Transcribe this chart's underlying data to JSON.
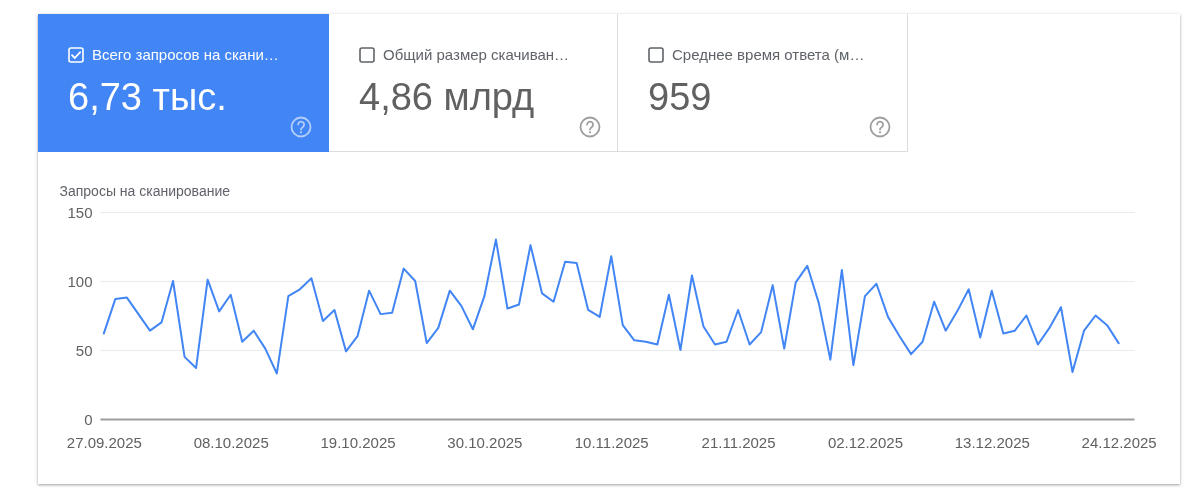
{
  "chart_data": [
    {
      "type": "other",
      "annotations": [
        "Всего запросов на скани…",
        "6,73 тыс.",
        "Общий размер скачиван…",
        "4,86 млрд",
        "Среднее время ответа (м…",
        "959"
      ]
    },
    {
      "type": "line",
      "ylabel": "Запросы на сканирование",
      "x": [
        "2025-09-27",
        "2025-09-28",
        "2025-09-29",
        "2025-09-30",
        "2025-10-01",
        "2025-10-02",
        "2025-10-03",
        "2025-10-04",
        "2025-10-05",
        "2025-10-06",
        "2025-10-07",
        "2025-10-08",
        "2025-10-09",
        "2025-10-10",
        "2025-10-11",
        "2025-10-12",
        "2025-10-13",
        "2025-10-14",
        "2025-10-15",
        "2025-10-16",
        "2025-10-17",
        "2025-10-18",
        "2025-10-19",
        "2025-10-20",
        "2025-10-21",
        "2025-10-22",
        "2025-10-23",
        "2025-10-24",
        "2025-10-25",
        "2025-10-26",
        "2025-10-27",
        "2025-10-28",
        "2025-10-29",
        "2025-10-30",
        "2025-10-31",
        "2025-11-01",
        "2025-11-02",
        "2025-11-03",
        "2025-11-04",
        "2025-11-05",
        "2025-11-06",
        "2025-11-07",
        "2025-11-08",
        "2025-11-09",
        "2025-11-10",
        "2025-11-11",
        "2025-11-12",
        "2025-11-13",
        "2025-11-14",
        "2025-11-15",
        "2025-11-16",
        "2025-11-17",
        "2025-11-18",
        "2025-11-19",
        "2025-11-20",
        "2025-11-21",
        "2025-11-22",
        "2025-11-23",
        "2025-11-24",
        "2025-11-25",
        "2025-11-26",
        "2025-11-27",
        "2025-11-28",
        "2025-11-29",
        "2025-11-30",
        "2025-12-01",
        "2025-12-02",
        "2025-12-03",
        "2025-12-04",
        "2025-12-05",
        "2025-12-06",
        "2025-12-07",
        "2025-12-08",
        "2025-12-09",
        "2025-12-10",
        "2025-12-11",
        "2025-12-12",
        "2025-12-13",
        "2025-12-14",
        "2025-12-15",
        "2025-12-16",
        "2025-12-17",
        "2025-12-18",
        "2025-12-19",
        "2025-12-20",
        "2025-12-21",
        "2025-12-22",
        "2025-12-23",
        "2025-12-24"
      ],
      "series": [
        {
          "color": "#4285f4",
          "values": [
            62,
            87,
            88,
            76,
            64,
            70,
            100,
            45,
            37,
            101,
            78,
            90,
            56,
            64,
            51,
            33,
            89,
            94,
            102,
            71,
            79,
            49,
            60,
            93,
            76,
            77,
            109,
            100,
            55,
            66,
            93,
            82,
            65,
            89,
            130,
            80,
            83,
            126,
            91,
            85,
            114,
            113,
            79,
            74,
            118,
            68,
            57,
            56,
            54,
            90,
            50,
            104,
            67,
            54,
            56,
            79,
            54,
            63,
            97,
            51,
            99,
            111,
            84,
            43,
            108,
            39,
            89,
            98,
            74,
            60,
            47,
            56,
            85,
            64,
            78,
            94,
            59,
            93,
            62,
            64,
            75,
            54,
            66,
            81,
            34,
            64,
            75,
            68,
            55
          ]
        }
      ],
      "xlim": [
        "2025-09-26T16:00",
        "2025-12-25T08:00"
      ],
      "xticks": [
        {
          "value": "2025-09-27",
          "label": "27.09.2025"
        },
        {
          "value": "2025-10-08",
          "label": "08.10.2025"
        },
        {
          "value": "2025-10-19",
          "label": "19.10.2025"
        },
        {
          "value": "2025-10-30",
          "label": "30.10.2025"
        },
        {
          "value": "2025-11-10",
          "label": "10.11.2025"
        },
        {
          "value": "2025-11-21",
          "label": "21.11.2025"
        },
        {
          "value": "2025-12-02",
          "label": "02.12.2025"
        },
        {
          "value": "2025-12-13",
          "label": "13.12.2025"
        },
        {
          "value": "2025-12-24",
          "label": "24.12.2025"
        }
      ],
      "ylim": [
        0,
        150
      ],
      "yticks": [
        0,
        50,
        100,
        150
      ],
      "grid": "y"
    }
  ]
}
